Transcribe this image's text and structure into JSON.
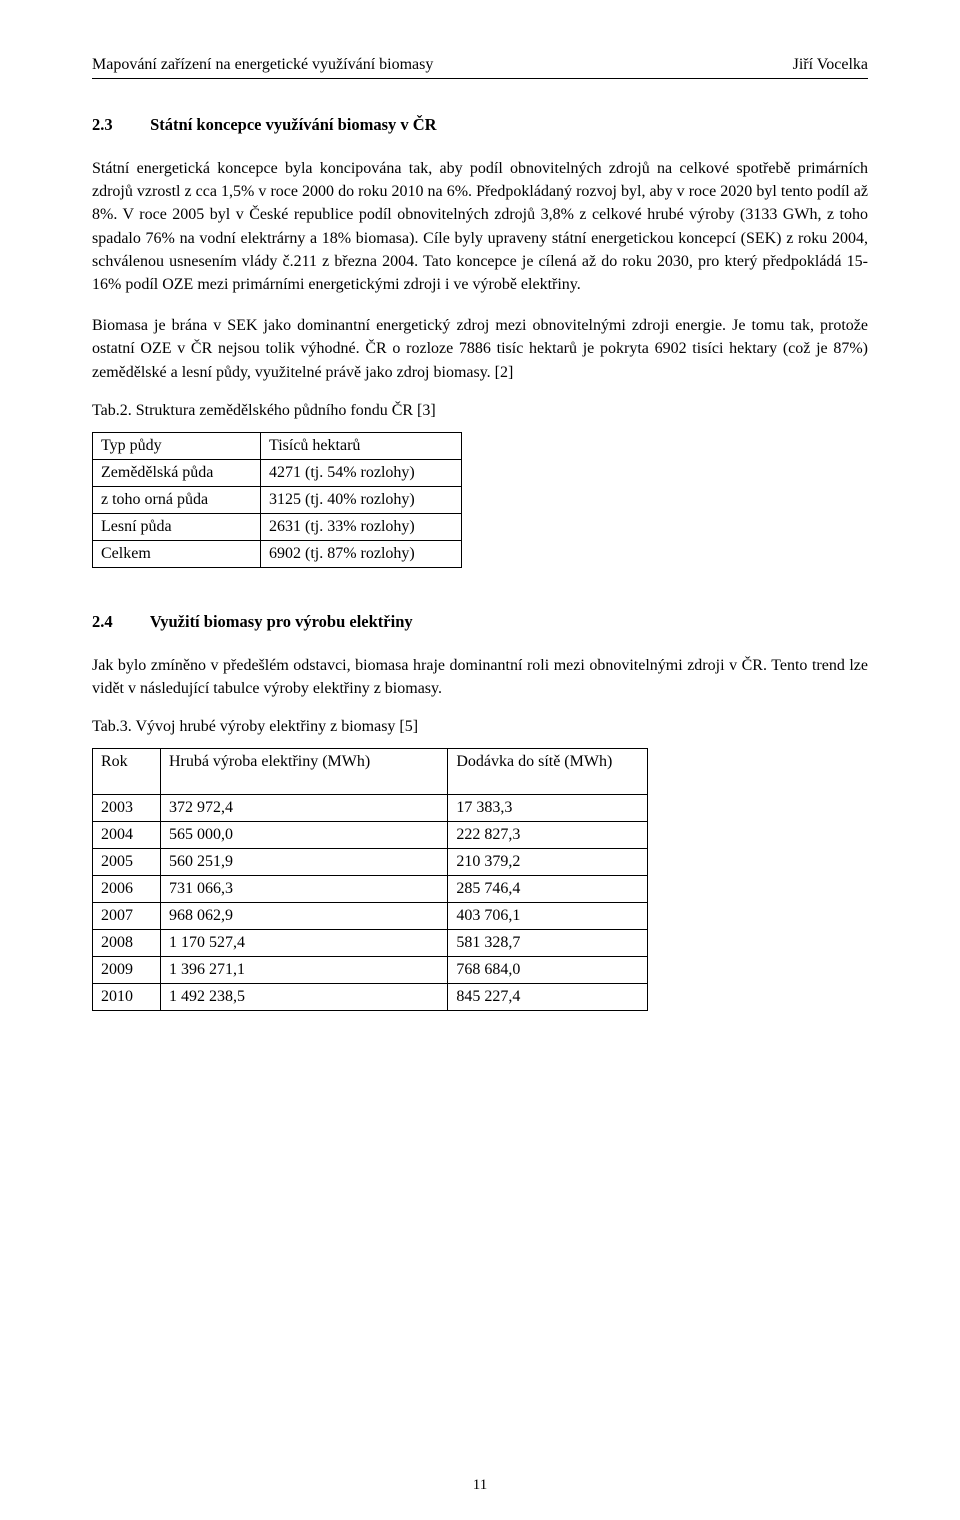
{
  "header": {
    "left": "Mapování zařízení na energetické využívání biomasy",
    "right": "Jiří Vocelka"
  },
  "section23": {
    "num": "2.3",
    "title": "Státní koncepce využívání biomasy v ČR",
    "p1": "Státní energetická koncepce byla koncipována tak, aby podíl obnovitelných zdrojů na celkové spotřebě primárních zdrojů vzrostl z cca 1,5% v roce 2000 do roku 2010 na 6%. Předpokládaný rozvoj byl, aby v roce 2020 byl tento podíl až 8%. V roce 2005 byl v České republice podíl obnovitelných zdrojů 3,8% z celkové hrubé výroby (3133 GWh, z toho spadalo 76% na vodní elektrárny a 18% biomasa). Cíle byly upraveny státní energetickou koncepcí (SEK) z roku 2004, schválenou usnesením vlády č.211 z března 2004. Tato koncepce je cílená až do roku 2030, pro který předpokládá 15-16% podíl OZE mezi primárními energetickými zdroji i ve výrobě elektřiny.",
    "p2": "Biomasa je brána v SEK jako dominantní energetický zdroj mezi obnovitelnými zdroji energie. Je tomu tak, protože ostatní OZE v ČR nejsou tolik výhodné. ČR o rozloze 7886 tisíc hektarů je pokryta 6902 tisíci hektary (což je 87%) zemědělské a lesní půdy, využitelné právě jako zdroj biomasy. [2]"
  },
  "table2": {
    "caption": "Tab.2. Struktura zemědělského půdního fondu ČR [3]",
    "col1": "Typ půdy",
    "col2": "Tisíců hektarů",
    "rows": [
      [
        "Zemědělská půda",
        "4271 (tj. 54% rozlohy)"
      ],
      [
        "z toho orná půda",
        "3125 (tj. 40% rozlohy)"
      ],
      [
        "Lesní půda",
        "2631 (tj. 33% rozlohy)"
      ],
      [
        "Celkem",
        "6902 (tj. 87% rozlohy)"
      ]
    ]
  },
  "section24": {
    "num": "2.4",
    "title": "Využití biomasy pro výrobu elektřiny",
    "p1": "Jak bylo zmíněno v předešlém odstavci, biomasa hraje dominantní roli mezi obnovitelnými zdroji v ČR. Tento trend lze vidět v následující tabulce výroby elektřiny z biomasy."
  },
  "table3": {
    "caption": "Tab.3.  Vývoj hrubé výroby elektřiny z biomasy [5]",
    "col1": "Rok",
    "col2": "Hrubá výroba elektřiny (MWh)",
    "col3": "Dodávka do sítě (MWh)",
    "rows": [
      [
        "2003",
        "372 972,4",
        "17 383,3"
      ],
      [
        "2004",
        "565 000,0",
        "222 827,3"
      ],
      [
        "2005",
        "560 251,9",
        "210 379,2"
      ],
      [
        "2006",
        "731 066,3",
        "285 746,4"
      ],
      [
        "2007",
        "968 062,9",
        "403 706,1"
      ],
      [
        "2008",
        "1 170 527,4",
        "581 328,7"
      ],
      [
        "2009",
        "1 396 271,1",
        "768 684,0"
      ],
      [
        "2010",
        "1 492 238,5",
        "845 227,4"
      ]
    ]
  },
  "pageNumber": "11"
}
